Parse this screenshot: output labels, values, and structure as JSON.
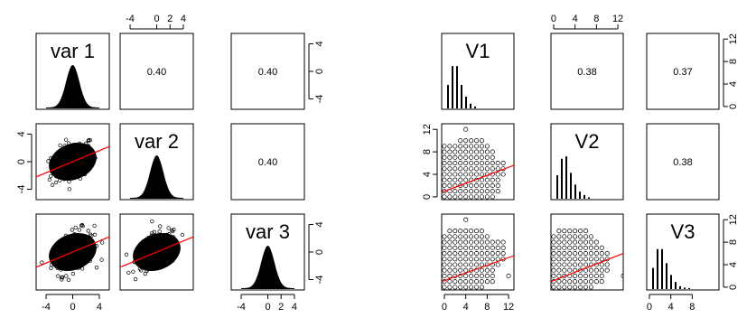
{
  "chart_data": [
    {
      "type": "scatter",
      "layout": "scatterplot-matrix",
      "variables": [
        "var 1",
        "var 2",
        "var 3"
      ],
      "axis_range": [
        -5.5,
        5.5
      ],
      "ticks": [
        -4,
        0,
        4
      ],
      "minor_ticks": [
        -4,
        0,
        2,
        4
      ],
      "correlations": [
        {
          "row": 0,
          "col": 1,
          "label": "0.40",
          "value": 0.4
        },
        {
          "row": 0,
          "col": 2,
          "label": "0.40",
          "value": 0.4
        },
        {
          "row": 1,
          "col": 2,
          "label": "0.40",
          "value": 0.4
        }
      ],
      "regression": [
        {
          "row": 1,
          "col": 0,
          "x": [
            -5.5,
            5.5
          ],
          "y": [
            -2.2,
            2.2
          ]
        },
        {
          "row": 2,
          "col": 0,
          "x": [
            -5.5,
            5.5
          ],
          "y": [
            -2.2,
            2.2
          ]
        },
        {
          "row": 2,
          "col": 1,
          "x": [
            -5.5,
            5.5
          ],
          "y": [
            -2.2,
            2.2
          ]
        }
      ],
      "scatter_shape": {
        "center": [
          0,
          0
        ],
        "sd": 1.6,
        "max_radius": 4.8
      },
      "diag_density": "normal",
      "line_color": "#ff0000",
      "point_color": "#000000"
    },
    {
      "type": "scatter",
      "layout": "scatterplot-matrix",
      "variables": [
        "V1",
        "V2",
        "V3"
      ],
      "axis_range": [
        -0.5,
        13
      ],
      "ticks": [
        0,
        4,
        8,
        12
      ],
      "correlations": [
        {
          "row": 0,
          "col": 1,
          "label": "0.38",
          "value": 0.38
        },
        {
          "row": 0,
          "col": 2,
          "label": "0.37",
          "value": 0.37
        },
        {
          "row": 1,
          "col": 2,
          "label": "0.38",
          "value": 0.38
        }
      ],
      "regression": [
        {
          "row": 1,
          "col": 0,
          "x": [
            -0.5,
            13
          ],
          "y": [
            0.8,
            5.6
          ]
        },
        {
          "row": 2,
          "col": 0,
          "x": [
            -0.5,
            13
          ],
          "y": [
            1.0,
            5.6
          ]
        },
        {
          "row": 2,
          "col": 1,
          "x": [
            -0.5,
            13
          ],
          "y": [
            1.0,
            6.0
          ]
        }
      ],
      "count_scatter": {
        "cells": [
          {
            "row": 1,
            "col": 0,
            "columns": [
              [
                0,
                9
              ],
              [
                0,
                9
              ],
              [
                0,
                9
              ],
              [
                0,
                10
              ],
              [
                0,
                10
              ],
              [
                0,
                10
              ],
              [
                0,
                10
              ],
              [
                0,
                10
              ],
              [
                0,
                9
              ],
              [
                0,
                8
              ],
              [
                1,
                6
              ],
              [
                4,
                6
              ]
            ],
            "extra": [
              [
                4,
                12
              ]
            ]
          },
          {
            "row": 2,
            "col": 0,
            "columns": [
              [
                0,
                9
              ],
              [
                0,
                10
              ],
              [
                0,
                10
              ],
              [
                0,
                10
              ],
              [
                0,
                10
              ],
              [
                0,
                10
              ],
              [
                0,
                10
              ],
              [
                0,
                10
              ],
              [
                1,
                9
              ],
              [
                1,
                8
              ],
              [
                4,
                8
              ],
              [
                5,
                8
              ]
            ],
            "extra": [
              [
                4,
                12
              ],
              [
                12,
                2
              ]
            ]
          },
          {
            "row": 2,
            "col": 1,
            "columns": [
              [
                0,
                9
              ],
              [
                0,
                10
              ],
              [
                0,
                10
              ],
              [
                0,
                10
              ],
              [
                0,
                10
              ],
              [
                0,
                10
              ],
              [
                0,
                10
              ],
              [
                0,
                9
              ],
              [
                1,
                8
              ],
              [
                1,
                7
              ],
              [
                3,
                6
              ]
            ],
            "extra": [
              [
                13,
                2
              ]
            ]
          }
        ]
      },
      "histograms": [
        {
          "var": "V1",
          "x": [
            0,
            1,
            2,
            3,
            4,
            5,
            6
          ],
          "freq": [
            0.5,
            0.9,
            0.9,
            0.5,
            0.25,
            0.1,
            0.04
          ]
        },
        {
          "var": "V2",
          "x": [
            0,
            1,
            2,
            3,
            4,
            5,
            6,
            7
          ],
          "freq": [
            0.5,
            0.85,
            0.9,
            0.55,
            0.3,
            0.15,
            0.08,
            0.03
          ]
        },
        {
          "var": "V3",
          "x": [
            0,
            1,
            2,
            3,
            4,
            5,
            6,
            7,
            8
          ],
          "freq": [
            0.45,
            0.85,
            0.85,
            0.55,
            0.3,
            0.15,
            0.06,
            0.03,
            0.02
          ]
        }
      ],
      "line_color": "#ff0000",
      "point_color": "#000000"
    }
  ]
}
